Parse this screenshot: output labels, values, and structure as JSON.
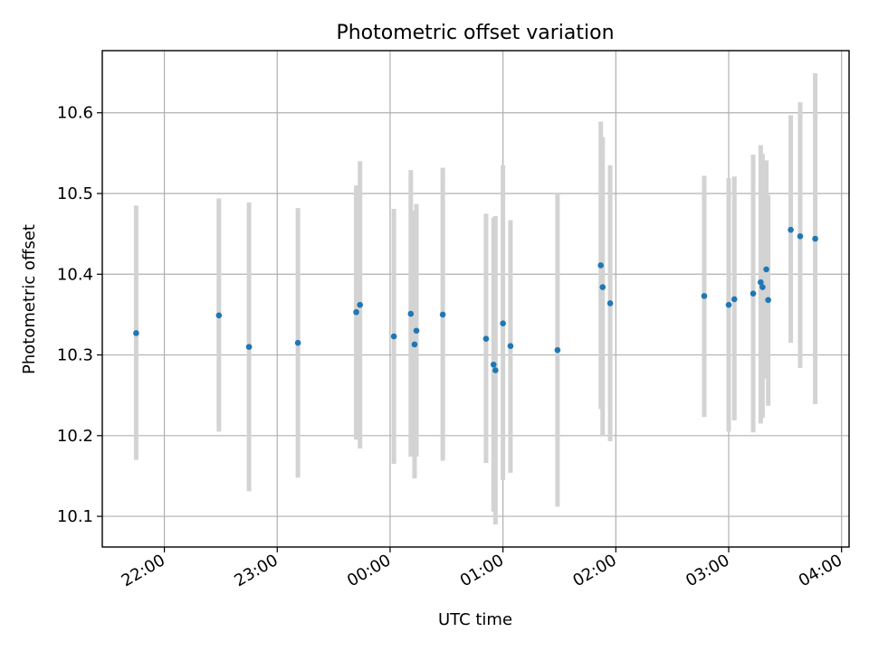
{
  "chart_data": {
    "type": "scatter",
    "title": "Photometric offset variation",
    "xlabel": "UTC time",
    "ylabel": "Photometric offset",
    "x_start": "21:27",
    "x_end": "04:04",
    "ylim": [
      10.062,
      10.677
    ],
    "x_ticks": [
      "22:00",
      "23:00",
      "00:00",
      "01:00",
      "02:00",
      "03:00",
      "04:00"
    ],
    "y_ticks": [
      10.1,
      10.2,
      10.3,
      10.4,
      10.5,
      10.6
    ],
    "grid": true,
    "colors": {
      "point": "#1f77b4",
      "errorbar": "#d3d3d3"
    },
    "points": [
      {
        "x": "21:45",
        "y": 10.327,
        "lo": 10.17,
        "hi": 10.485
      },
      {
        "x": "22:29",
        "y": 10.349,
        "lo": 10.205,
        "hi": 10.494
      },
      {
        "x": "22:45",
        "y": 10.31,
        "lo": 10.131,
        "hi": 10.489
      },
      {
        "x": "23:11",
        "y": 10.315,
        "lo": 10.148,
        "hi": 10.482
      },
      {
        "x": "23:42",
        "y": 10.353,
        "lo": 10.195,
        "hi": 10.51
      },
      {
        "x": "23:44",
        "y": 10.362,
        "lo": 10.184,
        "hi": 10.54
      },
      {
        "x": "00:02",
        "y": 10.323,
        "lo": 10.165,
        "hi": 10.481
      },
      {
        "x": "00:11",
        "y": 10.351,
        "lo": 10.174,
        "hi": 10.529
      },
      {
        "x": "00:13",
        "y": 10.313,
        "lo": 10.147,
        "hi": 10.479
      },
      {
        "x": "00:14",
        "y": 10.33,
        "lo": 10.174,
        "hi": 10.487
      },
      {
        "x": "00:28",
        "y": 10.35,
        "lo": 10.169,
        "hi": 10.532
      },
      {
        "x": "00:51",
        "y": 10.32,
        "lo": 10.166,
        "hi": 10.475
      },
      {
        "x": "00:55",
        "y": 10.288,
        "lo": 10.106,
        "hi": 10.47
      },
      {
        "x": "00:56",
        "y": 10.281,
        "lo": 10.09,
        "hi": 10.472
      },
      {
        "x": "01:00",
        "y": 10.339,
        "lo": 10.145,
        "hi": 10.535
      },
      {
        "x": "01:04",
        "y": 10.311,
        "lo": 10.154,
        "hi": 10.467
      },
      {
        "x": "01:29",
        "y": 10.306,
        "lo": 10.112,
        "hi": 10.5
      },
      {
        "x": "01:52",
        "y": 10.411,
        "lo": 10.233,
        "hi": 10.589
      },
      {
        "x": "01:53",
        "y": 10.384,
        "lo": 10.199,
        "hi": 10.57
      },
      {
        "x": "01:57",
        "y": 10.364,
        "lo": 10.193,
        "hi": 10.535
      },
      {
        "x": "02:47",
        "y": 10.373,
        "lo": 10.223,
        "hi": 10.522
      },
      {
        "x": "03:00",
        "y": 10.362,
        "lo": 10.205,
        "hi": 10.519
      },
      {
        "x": "03:03",
        "y": 10.369,
        "lo": 10.219,
        "hi": 10.521
      },
      {
        "x": "03:13",
        "y": 10.376,
        "lo": 10.204,
        "hi": 10.548
      },
      {
        "x": "03:17",
        "y": 10.39,
        "lo": 10.215,
        "hi": 10.56
      },
      {
        "x": "03:18",
        "y": 10.384,
        "lo": 10.222,
        "hi": 10.549
      },
      {
        "x": "03:20",
        "y": 10.406,
        "lo": 10.271,
        "hi": 10.541
      },
      {
        "x": "03:21",
        "y": 10.368,
        "lo": 10.237,
        "hi": 10.498
      },
      {
        "x": "03:33",
        "y": 10.455,
        "lo": 10.315,
        "hi": 10.597
      },
      {
        "x": "03:38",
        "y": 10.447,
        "lo": 10.284,
        "hi": 10.613
      },
      {
        "x": "03:46",
        "y": 10.444,
        "lo": 10.239,
        "hi": 10.649
      }
    ]
  }
}
